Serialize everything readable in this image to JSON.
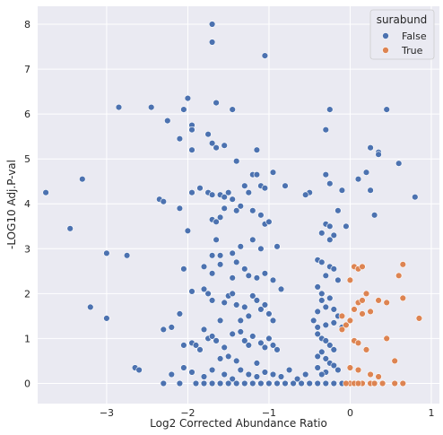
{
  "chart_data": {
    "type": "scatter",
    "xlabel": "Log2 Corrected Abundance Ratio",
    "ylabel": "-LOG10 Adj.P-val",
    "xlim": [
      -3.85,
      1.1
    ],
    "ylim": [
      -0.45,
      8.4
    ],
    "xticks": [
      -3,
      -2,
      -1,
      0,
      1
    ],
    "yticks": [
      0,
      1,
      2,
      3,
      4,
      5,
      6,
      7,
      8
    ],
    "grid": true,
    "background_color": "#EAEAF2",
    "legend": {
      "title": "surabund",
      "placement": "top-right",
      "entries": [
        {
          "label": "False",
          "color": "#4C72B0"
        },
        {
          "label": "True",
          "color": "#DD8452"
        }
      ]
    },
    "series": [
      {
        "name": "False",
        "color": "#4C72B0",
        "points": [
          [
            -1.7,
            8.0
          ],
          [
            -1.7,
            7.6
          ],
          [
            -1.05,
            7.3
          ],
          [
            -2.0,
            6.35
          ],
          [
            -2.85,
            6.15
          ],
          [
            -2.45,
            6.15
          ],
          [
            -2.05,
            6.1
          ],
          [
            -1.65,
            6.25
          ],
          [
            -1.45,
            6.1
          ],
          [
            -0.25,
            6.1
          ],
          [
            0.45,
            6.1
          ],
          [
            -2.25,
            5.85
          ],
          [
            -1.95,
            5.75
          ],
          [
            -1.95,
            5.65
          ],
          [
            -1.75,
            5.55
          ],
          [
            -1.7,
            5.35
          ],
          [
            -2.1,
            5.45
          ],
          [
            -1.95,
            5.2
          ],
          [
            -1.55,
            5.3
          ],
          [
            -1.65,
            5.25
          ],
          [
            -1.15,
            5.2
          ],
          [
            -0.3,
            5.65
          ],
          [
            0.25,
            5.25
          ],
          [
            0.35,
            5.15
          ],
          [
            0.35,
            5.1
          ],
          [
            0.6,
            4.9
          ],
          [
            -3.75,
            4.25
          ],
          [
            -3.3,
            4.55
          ],
          [
            -2.35,
            4.1
          ],
          [
            -2.3,
            4.05
          ],
          [
            -1.95,
            4.25
          ],
          [
            -1.85,
            4.35
          ],
          [
            -1.75,
            4.25
          ],
          [
            -1.7,
            4.2
          ],
          [
            -1.6,
            4.2
          ],
          [
            -1.55,
            4.15
          ],
          [
            -1.5,
            4.25
          ],
          [
            -1.45,
            4.1
          ],
          [
            -1.4,
            4.95
          ],
          [
            -1.3,
            4.4
          ],
          [
            -1.2,
            4.65
          ],
          [
            -1.15,
            4.65
          ],
          [
            -1.1,
            4.4
          ],
          [
            -1.25,
            4.25
          ],
          [
            -1.05,
            4.35
          ],
          [
            -0.95,
            4.7
          ],
          [
            -0.8,
            4.4
          ],
          [
            -0.5,
            4.25
          ],
          [
            -0.55,
            4.2
          ],
          [
            -0.3,
            4.65
          ],
          [
            -0.25,
            4.45
          ],
          [
            -0.1,
            4.3
          ],
          [
            0.1,
            4.55
          ],
          [
            0.2,
            4.7
          ],
          [
            0.25,
            4.3
          ],
          [
            0.8,
            4.15
          ],
          [
            -2.1,
            3.9
          ],
          [
            -1.7,
            3.65
          ],
          [
            -1.65,
            3.6
          ],
          [
            -1.6,
            3.7
          ],
          [
            -1.55,
            3.9
          ],
          [
            -1.4,
            3.85
          ],
          [
            -1.35,
            3.95
          ],
          [
            -1.2,
            3.85
          ],
          [
            -1.1,
            3.75
          ],
          [
            -1.05,
            3.55
          ],
          [
            -1.0,
            3.6
          ],
          [
            -0.3,
            3.55
          ],
          [
            -0.25,
            3.5
          ],
          [
            -0.2,
            3.3
          ],
          [
            -0.15,
            3.85
          ],
          [
            -0.05,
            3.5
          ],
          [
            0.3,
            3.75
          ],
          [
            -3.45,
            3.45
          ],
          [
            -2.0,
            3.4
          ],
          [
            -1.65,
            3.2
          ],
          [
            -1.6,
            2.85
          ],
          [
            -1.7,
            2.85
          ],
          [
            -1.45,
            2.9
          ],
          [
            -1.35,
            3.05
          ],
          [
            -1.2,
            3.2
          ],
          [
            -1.1,
            3.0
          ],
          [
            -0.9,
            3.05
          ],
          [
            -2.75,
            2.85
          ],
          [
            -3.0,
            2.9
          ],
          [
            -0.25,
            3.2
          ],
          [
            -0.35,
            3.35
          ],
          [
            -2.05,
            2.55
          ],
          [
            -1.8,
            2.6
          ],
          [
            -1.7,
            2.45
          ],
          [
            -1.6,
            2.65
          ],
          [
            -1.4,
            2.7
          ],
          [
            -1.3,
            2.55
          ],
          [
            -1.25,
            2.4
          ],
          [
            -1.15,
            2.35
          ],
          [
            -1.05,
            2.45
          ],
          [
            -0.95,
            2.3
          ],
          [
            -1.45,
            2.35
          ],
          [
            -0.4,
            2.75
          ],
          [
            -0.35,
            2.7
          ],
          [
            -0.25,
            2.6
          ],
          [
            -0.2,
            2.55
          ],
          [
            -0.15,
            2.3
          ],
          [
            -0.3,
            2.4
          ],
          [
            -3.2,
            1.7
          ],
          [
            -3.0,
            1.45
          ],
          [
            -2.3,
            1.2
          ],
          [
            -2.2,
            1.25
          ],
          [
            -2.1,
            1.55
          ],
          [
            -1.95,
            2.05
          ],
          [
            -1.8,
            2.1
          ],
          [
            -1.75,
            2.0
          ],
          [
            -1.7,
            1.85
          ],
          [
            -1.55,
            1.8
          ],
          [
            -1.5,
            1.95
          ],
          [
            -1.45,
            2.0
          ],
          [
            -1.4,
            1.75
          ],
          [
            -1.3,
            1.7
          ],
          [
            -1.2,
            1.95
          ],
          [
            -1.15,
            1.85
          ],
          [
            -1.1,
            1.65
          ],
          [
            -1.05,
            1.75
          ],
          [
            -1.0,
            1.55
          ],
          [
            -0.95,
            1.4
          ],
          [
            -0.85,
            2.1
          ],
          [
            -1.25,
            1.5
          ],
          [
            -1.35,
            1.4
          ],
          [
            -1.6,
            1.4
          ],
          [
            -1.8,
            1.2
          ],
          [
            -0.4,
            2.15
          ],
          [
            -0.35,
            2.0
          ],
          [
            -0.35,
            1.85
          ],
          [
            -0.3,
            1.7
          ],
          [
            -0.25,
            1.9
          ],
          [
            -0.2,
            1.65
          ],
          [
            -0.4,
            1.6
          ],
          [
            -0.45,
            1.4
          ],
          [
            -0.15,
            1.5
          ],
          [
            -0.2,
            1.35
          ],
          [
            -0.3,
            1.3
          ],
          [
            -0.4,
            1.25
          ],
          [
            -0.1,
            1.25
          ],
          [
            -2.05,
            0.85
          ],
          [
            -1.95,
            0.9
          ],
          [
            -1.9,
            0.85
          ],
          [
            -1.85,
            0.75
          ],
          [
            -1.75,
            1.0
          ],
          [
            -1.7,
            1.05
          ],
          [
            -1.65,
            0.95
          ],
          [
            -1.55,
            0.8
          ],
          [
            -1.45,
            1.1
          ],
          [
            -1.35,
            1.15
          ],
          [
            -1.3,
            0.95
          ],
          [
            -1.25,
            0.85
          ],
          [
            -1.2,
            1.05
          ],
          [
            -1.1,
            0.9
          ],
          [
            -1.05,
            0.8
          ],
          [
            -1.0,
            1.0
          ],
          [
            -0.95,
            0.85
          ],
          [
            -0.9,
            0.75
          ],
          [
            -1.5,
            0.6
          ],
          [
            -1.6,
            0.55
          ],
          [
            -1.4,
            0.5
          ],
          [
            -1.15,
            0.45
          ],
          [
            -0.4,
            1.1
          ],
          [
            -0.35,
            1.0
          ],
          [
            -0.3,
            0.95
          ],
          [
            -0.25,
            0.85
          ],
          [
            -0.2,
            0.75
          ],
          [
            -0.35,
            0.7
          ],
          [
            -0.4,
            0.6
          ],
          [
            -0.3,
            0.55
          ],
          [
            -0.25,
            0.45
          ],
          [
            -0.2,
            0.4
          ],
          [
            -0.15,
            0.3
          ],
          [
            -0.4,
            0.35
          ],
          [
            -0.3,
            0.25
          ],
          [
            -0.35,
            0.2
          ],
          [
            -2.65,
            0.35
          ],
          [
            -2.6,
            0.3
          ],
          [
            -2.2,
            0.2
          ],
          [
            -2.05,
            0.35
          ],
          [
            -1.95,
            0.25
          ],
          [
            -1.8,
            0.15
          ],
          [
            -1.7,
            0.3
          ],
          [
            -1.55,
            0.2
          ],
          [
            -1.45,
            0.1
          ],
          [
            -1.35,
            0.3
          ],
          [
            -1.25,
            0.2
          ],
          [
            -1.15,
            0.15
          ],
          [
            -1.05,
            0.25
          ],
          [
            -0.95,
            0.2
          ],
          [
            -0.85,
            0.15
          ],
          [
            -0.75,
            0.3
          ],
          [
            -0.65,
            0.1
          ],
          [
            -0.55,
            0.2
          ],
          [
            -2.3,
            0.0
          ],
          [
            -2.1,
            0.0
          ],
          [
            -1.9,
            0.0
          ],
          [
            -1.8,
            0.0
          ],
          [
            -1.7,
            0.0
          ],
          [
            -1.6,
            0.0
          ],
          [
            -1.5,
            0.0
          ],
          [
            -1.4,
            0.0
          ],
          [
            -1.3,
            0.0
          ],
          [
            -1.2,
            0.0
          ],
          [
            -1.1,
            0.0
          ],
          [
            -1.0,
            0.0
          ],
          [
            -0.9,
            0.0
          ],
          [
            -0.8,
            0.0
          ],
          [
            -0.7,
            0.0
          ],
          [
            -0.6,
            0.0
          ],
          [
            -0.5,
            0.0
          ],
          [
            -0.4,
            0.0
          ],
          [
            -0.3,
            0.0
          ],
          [
            -0.2,
            0.0
          ],
          [
            -0.1,
            0.0
          ]
        ]
      },
      {
        "name": "True",
        "color": "#DD8452",
        "points": [
          [
            0.05,
            2.6
          ],
          [
            0.1,
            2.55
          ],
          [
            0.15,
            2.6
          ],
          [
            0.0,
            2.3
          ],
          [
            0.65,
            2.65
          ],
          [
            0.6,
            2.4
          ],
          [
            0.1,
            1.8
          ],
          [
            0.15,
            1.85
          ],
          [
            0.2,
            2.0
          ],
          [
            0.35,
            1.85
          ],
          [
            0.45,
            1.8
          ],
          [
            0.65,
            1.9
          ],
          [
            0.05,
            1.65
          ],
          [
            0.15,
            1.55
          ],
          [
            0.25,
            1.6
          ],
          [
            -0.1,
            1.5
          ],
          [
            0.85,
            1.45
          ],
          [
            0.0,
            1.4
          ],
          [
            -0.05,
            1.3
          ],
          [
            -0.1,
            1.2
          ],
          [
            0.05,
            0.95
          ],
          [
            0.1,
            0.9
          ],
          [
            0.2,
            0.75
          ],
          [
            0.45,
            1.0
          ],
          [
            0.55,
            0.5
          ],
          [
            0.0,
            0.35
          ],
          [
            0.1,
            0.3
          ],
          [
            0.25,
            0.2
          ],
          [
            0.35,
            0.15
          ],
          [
            0.0,
            0.0
          ],
          [
            0.05,
            0.0
          ],
          [
            0.15,
            0.0
          ],
          [
            0.25,
            0.0
          ],
          [
            0.3,
            0.0
          ],
          [
            0.4,
            0.0
          ],
          [
            0.55,
            0.0
          ],
          [
            0.65,
            0.0
          ],
          [
            -0.05,
            0.0
          ],
          [
            0.1,
            0.0
          ]
        ]
      }
    ]
  }
}
